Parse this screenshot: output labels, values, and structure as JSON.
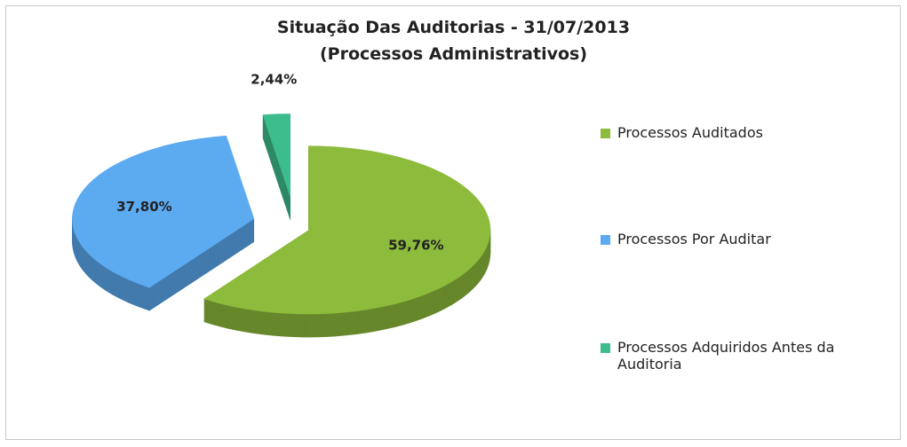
{
  "chart_data": {
    "type": "pie",
    "title": "Situação Das Auditorias - 31/07/2013",
    "subtitle": "(Processos Administrativos)",
    "categories": [
      "Processos Auditados",
      "Processos Por Auditar",
      "Processos Adquiridos Antes da Auditoria"
    ],
    "values": [
      59.76,
      37.8,
      2.44
    ],
    "value_labels": [
      "59,76%",
      "37,80%",
      "2,44%"
    ],
    "colors": [
      "#8dbb3c",
      "#5caaf0",
      "#3dbd8e"
    ],
    "legend": "right"
  }
}
